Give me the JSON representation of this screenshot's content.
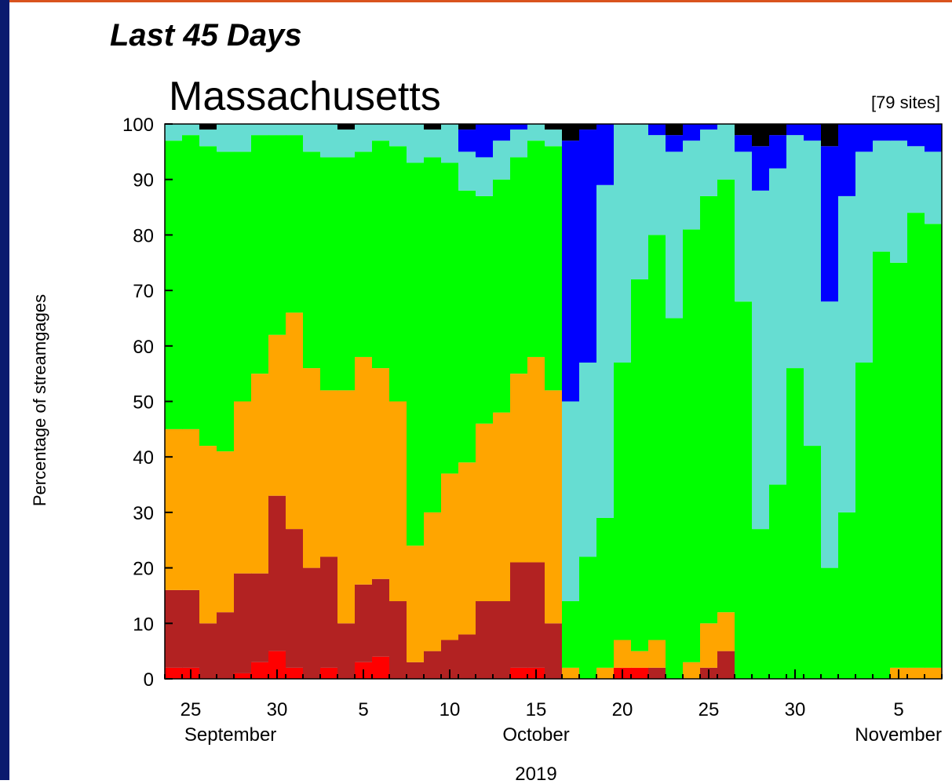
{
  "chart_data": {
    "type": "stacked-step",
    "header": "Last 45 Days",
    "title": "Massachusetts",
    "subtitle": "[79 sites]",
    "y_label": "Percentage of streamgages",
    "categories": [
      null,
      "25",
      null,
      null,
      null,
      null,
      "30",
      null,
      null,
      null,
      null,
      "5",
      null,
      null,
      null,
      null,
      "10",
      null,
      null,
      null,
      null,
      "15",
      null,
      null,
      null,
      null,
      "20",
      null,
      null,
      null,
      null,
      "25",
      null,
      null,
      null,
      null,
      "30",
      null,
      null,
      null,
      null,
      null,
      "5",
      null,
      null
    ],
    "month_labels": [
      "September",
      "October",
      "November"
    ],
    "year_label": "2019",
    "ylim": [
      0,
      100
    ],
    "yticks": [
      0,
      10,
      20,
      30,
      40,
      50,
      60,
      70,
      80,
      90,
      100
    ],
    "series": [
      {
        "color": "#ff0000",
        "values": [
          2,
          2,
          0,
          0,
          1,
          3,
          5,
          2,
          0,
          2,
          0,
          3,
          4,
          0,
          0,
          0,
          0,
          0,
          0,
          0,
          2,
          2,
          0,
          0,
          0,
          0,
          2,
          2,
          0,
          0,
          0,
          0,
          0,
          0,
          0,
          0,
          0,
          0,
          0,
          0,
          0,
          0,
          0,
          0,
          0
        ]
      },
      {
        "color": "#b22222",
        "values": [
          14,
          14,
          10,
          12,
          18,
          16,
          28,
          25,
          20,
          20,
          10,
          14,
          14,
          14,
          3,
          5,
          7,
          8,
          14,
          14,
          19,
          19,
          10,
          0,
          0,
          0,
          0,
          0,
          2,
          0,
          0,
          2,
          5,
          0,
          0,
          0,
          0,
          0,
          0,
          0,
          0,
          0,
          0,
          0,
          0
        ]
      },
      {
        "color": "#ffa500",
        "values": [
          29,
          29,
          32,
          29,
          31,
          36,
          29,
          39,
          36,
          30,
          42,
          41,
          38,
          36,
          21,
          25,
          30,
          31,
          32,
          34,
          34,
          37,
          42,
          2,
          0,
          2,
          5,
          3,
          5,
          0,
          3,
          8,
          7,
          0,
          0,
          0,
          0,
          0,
          0,
          0,
          0,
          0,
          2,
          2,
          2
        ]
      },
      {
        "color": "#00ff00",
        "values": [
          52,
          53,
          54,
          54,
          45,
          43,
          36,
          32,
          39,
          42,
          42,
          37,
          41,
          46,
          69,
          64,
          56,
          49,
          41,
          42,
          39,
          39,
          44,
          12,
          22,
          27,
          50,
          67,
          73,
          65,
          78,
          77,
          78,
          68,
          27,
          35,
          56,
          42,
          20,
          30,
          57,
          77,
          73,
          82,
          80
        ]
      },
      {
        "color": "#66ddd2",
        "values": [
          3,
          2,
          3,
          5,
          5,
          2,
          2,
          2,
          5,
          6,
          5,
          5,
          3,
          4,
          7,
          5,
          7,
          7,
          7,
          7,
          5,
          3,
          3,
          36,
          35,
          60,
          43,
          28,
          18,
          30,
          16,
          12,
          10,
          27,
          61,
          57,
          42,
          55,
          48,
          57,
          38,
          20,
          22,
          12,
          13
        ]
      },
      {
        "color": "#0000ff",
        "values": [
          0,
          0,
          0,
          0,
          0,
          0,
          0,
          0,
          0,
          0,
          0,
          0,
          0,
          0,
          0,
          0,
          0,
          4,
          6,
          3,
          1,
          0,
          0,
          47,
          42,
          11,
          0,
          0,
          2,
          3,
          3,
          1,
          0,
          3,
          8,
          6,
          2,
          3,
          28,
          13,
          5,
          3,
          3,
          4,
          5
        ]
      },
      {
        "color": "#000000",
        "values": [
          0,
          0,
          1,
          0,
          0,
          0,
          0,
          0,
          0,
          0,
          1,
          0,
          0,
          0,
          0,
          1,
          0,
          1,
          0,
          0,
          0,
          0,
          1,
          3,
          1,
          0,
          0,
          0,
          0,
          2,
          0,
          0,
          0,
          2,
          4,
          2,
          0,
          0,
          4,
          0,
          0,
          0,
          0,
          0,
          0
        ]
      }
    ]
  }
}
